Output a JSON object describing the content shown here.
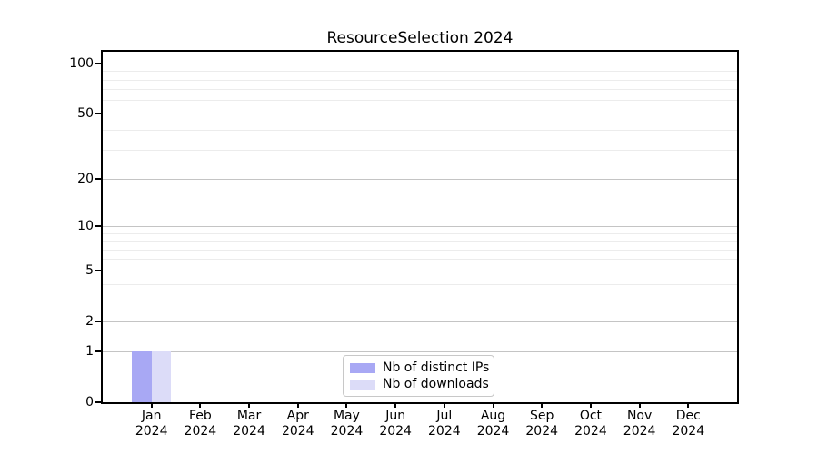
{
  "figure": {
    "title": "ResourceSelection 2024"
  },
  "chart_data": {
    "type": "bar",
    "title": "ResourceSelection 2024",
    "categories": [
      "Jan 2024",
      "Feb 2024",
      "Mar 2024",
      "Apr 2024",
      "May 2024",
      "Jun 2024",
      "Jul 2024",
      "Aug 2024",
      "Sep 2024",
      "Oct 2024",
      "Nov 2024",
      "Dec 2024"
    ],
    "x_tick_months": [
      "Jan",
      "Feb",
      "Mar",
      "Apr",
      "May",
      "Jun",
      "Jul",
      "Aug",
      "Sep",
      "Oct",
      "Nov",
      "Dec"
    ],
    "x_tick_year": "2024",
    "series": [
      {
        "name": "Nb of distinct IPs",
        "color": "#a8a8f4",
        "values": [
          1,
          0,
          0,
          0,
          0,
          0,
          0,
          0,
          0,
          0,
          0,
          0
        ]
      },
      {
        "name": "Nb of downloads",
        "color": "#dcdcf8",
        "values": [
          1,
          0,
          0,
          0,
          0,
          0,
          0,
          0,
          0,
          0,
          0,
          0
        ]
      }
    ],
    "y_scale": "log1p",
    "ylim": [
      0,
      118
    ],
    "y_major_ticks": [
      0,
      1,
      2,
      5,
      10,
      20,
      50,
      100
    ],
    "y_minor_gridlines": [
      3,
      4,
      6,
      7,
      8,
      9,
      30,
      40,
      60,
      70,
      80,
      90
    ],
    "grid": true,
    "legend_position": "lower center",
    "xlabel": "",
    "ylabel": ""
  },
  "colors": {
    "major_grid": "#c4c4c4",
    "minor_grid": "#ececec",
    "spine": "#000000",
    "background": "#ffffff",
    "legend_border": "#c8c8c8"
  }
}
